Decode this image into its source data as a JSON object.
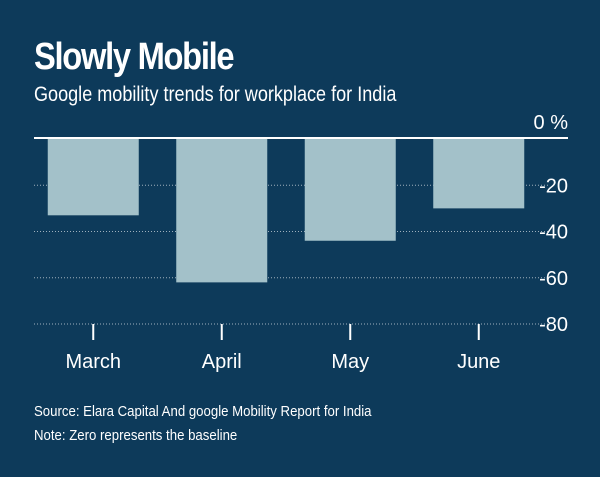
{
  "title": "Slowly Mobile",
  "subtitle": "Google mobility trends for workplace for India",
  "chart_data": {
    "type": "bar",
    "categories": [
      "March",
      "April",
      "May",
      "June"
    ],
    "values": [
      -33,
      -62,
      -44,
      -30
    ],
    "ylim": [
      -80,
      0
    ],
    "yticks": [
      {
        "value": 0,
        "label": "0 %"
      },
      {
        "value": -20,
        "label": "-20"
      },
      {
        "value": -40,
        "label": "-40"
      },
      {
        "value": -60,
        "label": "-60"
      },
      {
        "value": -80,
        "label": "-80"
      }
    ],
    "grid": true,
    "colors": {
      "background": "#0d3a5a",
      "bar": "#a3c1c9",
      "grid": "#ffffff"
    }
  },
  "footnotes": {
    "source": "Source: Elara Capital And google Mobility Report for India",
    "note": "Note: Zero represents the baseline"
  }
}
